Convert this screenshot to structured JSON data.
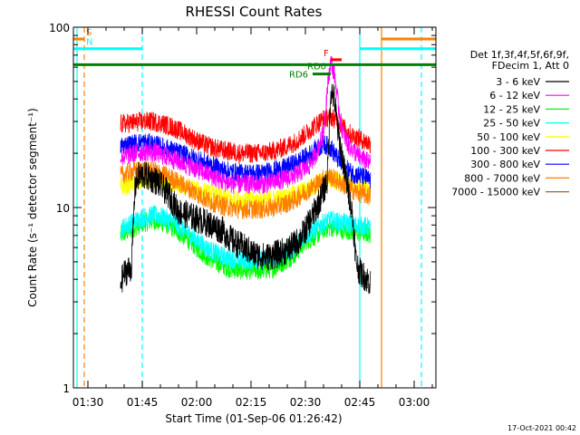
{
  "chart_data": {
    "type": "line",
    "title": "RHESSI Count Rates",
    "xlabel": "Start Time (01-Sep-06 01:26:42)",
    "ylabel": "Count Rate (s⁻¹ detector segment⁻¹)",
    "yscale": "log",
    "ylim": [
      1,
      100
    ],
    "xlim": [
      "01:26",
      "03:06"
    ],
    "x_ticks": [
      "01:30",
      "01:45",
      "02:00",
      "02:15",
      "02:30",
      "02:45",
      "03:00"
    ],
    "y_ticks": [
      "1",
      "10",
      "100"
    ],
    "grid": false,
    "legend_header": [
      "Det 1f,3f,4f,5f,6f,9f,",
      "FDecim 1, Att 0"
    ],
    "timestamp": "17-Oct-2021 00:42",
    "series": [
      {
        "name": "3 - 6 keV",
        "color": "#000000",
        "x": [
          "01:39",
          "01:40",
          "01:41",
          "01:42",
          "01:43",
          "01:44",
          "01:46",
          "01:49",
          "01:52",
          "01:55",
          "01:58",
          "02:01",
          "02:04",
          "02:07",
          "02:10",
          "02:13",
          "02:16",
          "02:19",
          "02:22",
          "02:25",
          "02:28",
          "02:30",
          "02:32",
          "02:34",
          "02:35",
          "02:36",
          "02:37",
          "02:38",
          "02:39",
          "02:40",
          "02:41",
          "02:42",
          "02:43",
          "02:44",
          "02:45",
          "02:46",
          "02:47",
          "02:48"
        ],
        "y": [
          3.8,
          4.3,
          4.5,
          4.6,
          13.0,
          15.0,
          15.0,
          14.0,
          12.0,
          9.5,
          9.0,
          8.5,
          8.0,
          7.5,
          6.5,
          6.0,
          5.5,
          5.3,
          5.5,
          5.8,
          6.5,
          7.5,
          9.0,
          11.0,
          12.5,
          14.0,
          45.0,
          40.0,
          26.0,
          20.0,
          15.0,
          12.0,
          9.0,
          5.0,
          4.4,
          4.2,
          4.0,
          3.8
        ]
      },
      {
        "name": "6 - 12 keV",
        "color": "#ff00ff",
        "x": [
          "01:39",
          "01:43",
          "01:46",
          "01:49",
          "01:52",
          "01:55",
          "01:58",
          "02:01",
          "02:04",
          "02:07",
          "02:10",
          "02:13",
          "02:16",
          "02:19",
          "02:22",
          "02:25",
          "02:28",
          "02:31",
          "02:33",
          "02:35",
          "02:36",
          "02:37",
          "02:38",
          "02:39",
          "02:40",
          "02:41",
          "02:42",
          "02:43",
          "02:44",
          "02:45",
          "02:46",
          "02:47",
          "02:48"
        ],
        "y": [
          19.0,
          20.0,
          20.5,
          20.0,
          19.0,
          18.0,
          17.0,
          16.0,
          15.0,
          14.0,
          13.5,
          13.5,
          13.5,
          13.5,
          14.0,
          14.5,
          15.5,
          17.0,
          20.0,
          26.0,
          45.0,
          65.0,
          55.0,
          38.0,
          28.0,
          24.0,
          22.0,
          21.0,
          20.0,
          19.0,
          18.5,
          18.0,
          17.5
        ]
      },
      {
        "name": "12 - 25 keV",
        "color": "#00ff00",
        "x": [
          "01:39",
          "01:42",
          "01:45",
          "01:48",
          "01:51",
          "01:54",
          "01:57",
          "02:00",
          "02:03",
          "02:06",
          "02:09",
          "02:12",
          "02:15",
          "02:18",
          "02:21",
          "02:24",
          "02:27",
          "02:30",
          "02:33",
          "02:35",
          "02:37",
          "02:39",
          "02:41",
          "02:43",
          "02:45",
          "02:47",
          "02:48"
        ],
        "y": [
          7.0,
          7.6,
          8.2,
          8.5,
          8.2,
          7.6,
          6.8,
          6.0,
          5.3,
          4.9,
          4.6,
          4.5,
          4.5,
          4.5,
          4.6,
          5.0,
          5.5,
          6.5,
          7.0,
          7.6,
          7.8,
          7.6,
          7.5,
          7.4,
          7.3,
          7.2,
          7.1
        ]
      },
      {
        "name": "25 - 50 keV",
        "color": "#00ffff",
        "x": [
          "01:39",
          "01:42",
          "01:45",
          "01:48",
          "01:51",
          "01:54",
          "01:57",
          "02:00",
          "02:03",
          "02:06",
          "02:09",
          "02:12",
          "02:15",
          "02:18",
          "02:21",
          "02:24",
          "02:27",
          "02:30",
          "02:33",
          "02:35",
          "02:37",
          "02:39",
          "02:41",
          "02:43",
          "02:45",
          "02:47",
          "02:48"
        ],
        "y": [
          7.6,
          8.2,
          8.8,
          9.1,
          8.8,
          8.2,
          7.4,
          6.6,
          5.9,
          5.5,
          5.2,
          5.1,
          5.1,
          5.1,
          5.2,
          5.5,
          6.0,
          7.0,
          7.6,
          8.2,
          8.5,
          8.3,
          8.2,
          8.0,
          7.9,
          7.8,
          7.7
        ]
      },
      {
        "name": "50 - 100 keV",
        "color": "#ffff00",
        "x": [
          "01:39",
          "01:42",
          "01:45",
          "01:48",
          "01:51",
          "01:54",
          "01:57",
          "02:00",
          "02:03",
          "02:06",
          "02:09",
          "02:12",
          "02:15",
          "02:18",
          "02:21",
          "02:24",
          "02:27",
          "02:30",
          "02:33",
          "02:35",
          "02:37",
          "02:39",
          "02:41",
          "02:43",
          "02:45",
          "02:47",
          "02:48"
        ],
        "y": [
          13.0,
          13.6,
          14.2,
          14.4,
          14.0,
          13.5,
          13.0,
          12.5,
          12.0,
          11.5,
          11.2,
          11.0,
          11.0,
          11.0,
          11.1,
          11.3,
          11.8,
          12.5,
          13.5,
          14.2,
          14.4,
          14.0,
          13.8,
          13.5,
          13.2,
          13.0,
          12.8
        ]
      },
      {
        "name": "100 - 300 keV",
        "color": "#ff0000",
        "x": [
          "01:39",
          "01:42",
          "01:45",
          "01:48",
          "01:51",
          "01:54",
          "01:57",
          "02:00",
          "02:03",
          "02:06",
          "02:09",
          "02:12",
          "02:15",
          "02:18",
          "02:21",
          "02:24",
          "02:27",
          "02:30",
          "02:33",
          "02:35",
          "02:37",
          "02:39",
          "02:41",
          "02:43",
          "02:45",
          "02:47",
          "02:48"
        ],
        "y": [
          29.0,
          29.5,
          30.0,
          30.0,
          29.0,
          27.5,
          25.5,
          23.5,
          22.0,
          21.0,
          20.5,
          20.0,
          20.0,
          20.0,
          20.5,
          21.5,
          23.0,
          25.5,
          29.0,
          31.0,
          32.0,
          30.0,
          27.0,
          25.0,
          24.0,
          23.0,
          22.5
        ]
      },
      {
        "name": "300 - 800 keV",
        "color": "#0000ff",
        "x": [
          "01:39",
          "01:42",
          "01:45",
          "01:48",
          "01:51",
          "01:54",
          "01:57",
          "02:00",
          "02:03",
          "02:06",
          "02:09",
          "02:12",
          "02:15",
          "02:18",
          "02:21",
          "02:24",
          "02:27",
          "02:30",
          "02:33",
          "02:35",
          "02:37",
          "02:39",
          "02:41",
          "02:43",
          "02:45",
          "02:47",
          "02:48"
        ],
        "y": [
          22.0,
          22.5,
          23.0,
          22.5,
          21.5,
          20.5,
          19.5,
          18.5,
          17.5,
          16.5,
          15.8,
          15.5,
          15.5,
          15.5,
          16.0,
          16.5,
          17.5,
          19.0,
          21.0,
          22.5,
          21.5,
          18.5,
          16.5,
          15.5,
          15.0,
          14.5,
          14.0
        ]
      },
      {
        "name": "800 - 7000 keV",
        "color": "#ff8000",
        "x": [
          "01:39",
          "01:42",
          "01:45",
          "01:48",
          "01:51",
          "01:54",
          "01:57",
          "02:00",
          "02:03",
          "02:06",
          "02:09",
          "02:12",
          "02:15",
          "02:18",
          "02:21",
          "02:24",
          "02:27",
          "02:30",
          "02:33",
          "02:35",
          "02:37",
          "02:39",
          "02:41",
          "02:43",
          "02:45",
          "02:47",
          "02:48"
        ],
        "y": [
          15.0,
          15.8,
          16.2,
          16.0,
          15.2,
          14.2,
          13.0,
          12.0,
          11.0,
          10.4,
          10.0,
          9.8,
          9.8,
          9.8,
          10.0,
          10.4,
          11.0,
          12.2,
          13.5,
          14.5,
          14.8,
          14.0,
          13.2,
          12.5,
          12.0,
          11.7,
          11.5
        ]
      },
      {
        "name": "7000 - 15000 keV",
        "color": "#996633",
        "x": [],
        "y": []
      }
    ],
    "attenuator_lines": [
      {
        "x": "01:27",
        "color": "#00ffff",
        "style": "solid"
      },
      {
        "x": "01:45",
        "color": "#00ffff",
        "style": "dashed"
      },
      {
        "x": "02:45",
        "color": "#00ffff",
        "style": "solid"
      },
      {
        "x": "03:02",
        "color": "#00ffff",
        "style": "dashed"
      },
      {
        "x": "01:29",
        "color": "#ff8000",
        "style": "dashed"
      },
      {
        "x": "02:51",
        "color": "#ff8000",
        "style": "solid"
      }
    ],
    "flag_bars": [
      {
        "label": "S",
        "color": "#ff8000",
        "y": 86,
        "x0": "01:26",
        "x1": "01:29"
      },
      {
        "label": "",
        "color": "#ff8000",
        "y": 86,
        "x0": "02:51",
        "x1": "03:06"
      },
      {
        "label": "N",
        "color": "#00ffff",
        "y": 76,
        "x0": "01:26",
        "x1": "01:45"
      },
      {
        "label": "",
        "color": "#00ffff",
        "y": 76,
        "x0": "02:45",
        "x1": "03:06"
      },
      {
        "label": "F",
        "color": "#ff0000",
        "y": 66,
        "x0": "02:37",
        "x1": "02:40"
      },
      {
        "label": "RD0",
        "color": "#008000",
        "y": 62,
        "x0": "01:26",
        "x1": "03:06"
      },
      {
        "label": "RD6",
        "color": "#008000",
        "y": 55,
        "x0": "02:32",
        "x1": "02:37"
      }
    ]
  }
}
